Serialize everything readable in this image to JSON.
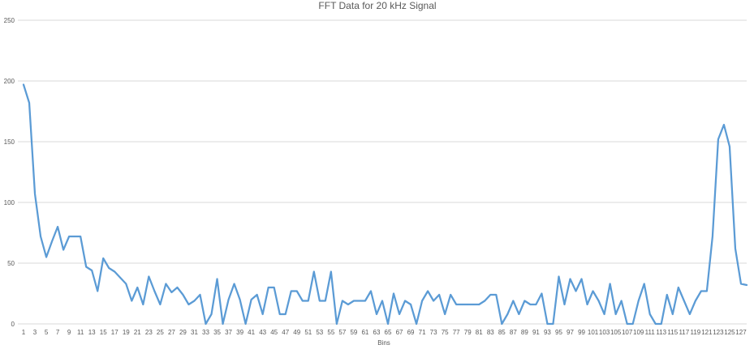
{
  "chart_data": {
    "type": "line",
    "title": "FFT Data for 20 kHz Signal",
    "xlabel": "Bins",
    "ylabel": "",
    "ylim": [
      0,
      250
    ],
    "yticks": [
      0,
      50,
      100,
      150,
      200,
      250
    ],
    "xtick_labels": [
      "1",
      "3",
      "5",
      "7",
      "9",
      "11",
      "13",
      "15",
      "17",
      "19",
      "21",
      "23",
      "25",
      "27",
      "29",
      "31",
      "33",
      "35",
      "37",
      "39",
      "41",
      "43",
      "45",
      "47",
      "49",
      "51",
      "53",
      "55",
      "57",
      "59",
      "61",
      "63",
      "65",
      "67",
      "69",
      "71",
      "73",
      "75",
      "77",
      "79",
      "81",
      "83",
      "85",
      "87",
      "89",
      "91",
      "93",
      "95",
      "97",
      "99",
      "101",
      "103",
      "105",
      "107",
      "109",
      "111",
      "113",
      "115",
      "117",
      "119",
      "121",
      "123",
      "125",
      "127"
    ],
    "grid": true,
    "legend": "none",
    "series_color": "#5B9BD5",
    "gridline_color": "#d9d9d9",
    "x": [
      1,
      2,
      3,
      4,
      5,
      6,
      7,
      8,
      9,
      10,
      11,
      12,
      13,
      14,
      15,
      16,
      17,
      18,
      19,
      20,
      21,
      22,
      23,
      24,
      25,
      26,
      27,
      28,
      29,
      30,
      31,
      32,
      33,
      34,
      35,
      36,
      37,
      38,
      39,
      40,
      41,
      42,
      43,
      44,
      45,
      46,
      47,
      48,
      49,
      50,
      51,
      52,
      53,
      54,
      55,
      56,
      57,
      58,
      59,
      60,
      61,
      62,
      63,
      64,
      65,
      66,
      67,
      68,
      69,
      70,
      71,
      72,
      73,
      74,
      75,
      76,
      77,
      78,
      79,
      80,
      81,
      82,
      83,
      84,
      85,
      86,
      87,
      88,
      89,
      90,
      91,
      92,
      93,
      94,
      95,
      96,
      97,
      98,
      99,
      100,
      101,
      102,
      103,
      104,
      105,
      106,
      107,
      108,
      109,
      110,
      111,
      112,
      113,
      114,
      115,
      116,
      117,
      118,
      119,
      120,
      121,
      122,
      123,
      124,
      125,
      126,
      127,
      128
    ],
    "values": [
      197,
      182,
      107,
      72,
      55,
      68,
      80,
      61,
      72,
      72,
      72,
      47,
      44,
      27,
      54,
      46,
      43,
      38,
      33,
      19,
      30,
      16,
      39,
      27,
      16,
      33,
      26,
      30,
      24,
      16,
      19,
      24,
      0,
      8,
      37,
      0,
      20,
      33,
      20,
      0,
      20,
      24,
      8,
      30,
      30,
      8,
      8,
      27,
      27,
      19,
      19,
      43,
      19,
      19,
      43,
      0,
      19,
      16,
      19,
      19,
      19,
      27,
      8,
      19,
      0,
      25,
      8,
      19,
      16,
      0,
      19,
      27,
      19,
      24,
      8,
      24,
      16,
      16,
      16,
      16,
      16,
      19,
      24,
      24,
      0,
      8,
      19,
      8,
      19,
      16,
      16,
      25,
      0,
      0,
      39,
      16,
      37,
      27,
      37,
      16,
      27,
      19,
      8,
      33,
      8,
      19,
      0,
      0,
      19,
      33,
      8,
      0,
      0,
      24,
      8,
      30,
      19,
      8,
      19,
      27,
      27,
      72,
      152,
      164,
      146,
      62,
      33,
      32
    ]
  }
}
